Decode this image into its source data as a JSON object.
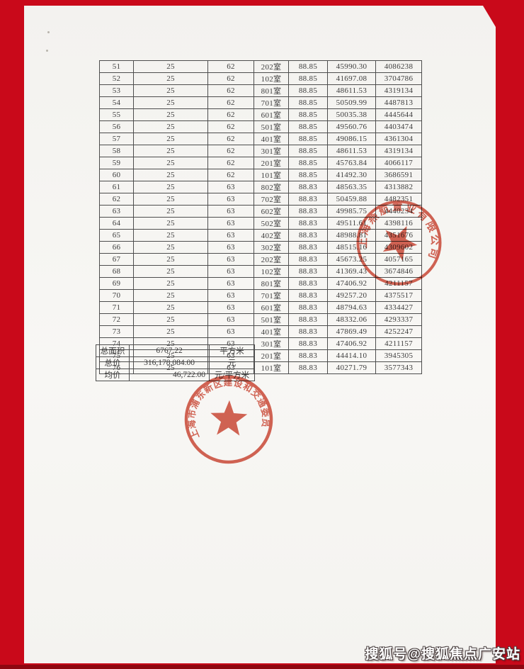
{
  "table": {
    "rows": [
      [
        "51",
        "25",
        "62",
        "202室",
        "88.85",
        "45990.30",
        "4086238"
      ],
      [
        "52",
        "25",
        "62",
        "102室",
        "88.85",
        "41697.08",
        "3704786"
      ],
      [
        "53",
        "25",
        "62",
        "801室",
        "88.85",
        "48611.53",
        "4319134"
      ],
      [
        "54",
        "25",
        "62",
        "701室",
        "88.85",
        "50509.99",
        "4487813"
      ],
      [
        "55",
        "25",
        "62",
        "601室",
        "88.85",
        "50035.38",
        "4445644"
      ],
      [
        "56",
        "25",
        "62",
        "501室",
        "88.85",
        "49560.76",
        "4403474"
      ],
      [
        "57",
        "25",
        "62",
        "401室",
        "88.85",
        "49086.15",
        "4361304"
      ],
      [
        "58",
        "25",
        "62",
        "301室",
        "88.85",
        "48611.53",
        "4319134"
      ],
      [
        "59",
        "25",
        "62",
        "201室",
        "88.85",
        "45763.84",
        "4066117"
      ],
      [
        "60",
        "25",
        "62",
        "101室",
        "88.85",
        "41492.30",
        "3686591"
      ],
      [
        "61",
        "25",
        "63",
        "802室",
        "88.83",
        "48563.35",
        "4313882"
      ],
      [
        "62",
        "25",
        "63",
        "702室",
        "88.83",
        "50459.88",
        "4482351"
      ],
      [
        "63",
        "25",
        "63",
        "602室",
        "88.83",
        "49985.75",
        "4440234"
      ],
      [
        "64",
        "25",
        "63",
        "502室",
        "88.83",
        "49511.61",
        "4398116"
      ],
      [
        "65",
        "25",
        "63",
        "402室",
        "88.83",
        "48988.81",
        "4351676"
      ],
      [
        "66",
        "25",
        "63",
        "302室",
        "88.83",
        "48515.16",
        "4309602"
      ],
      [
        "67",
        "25",
        "63",
        "202室",
        "88.83",
        "45673.25",
        "4057165"
      ],
      [
        "68",
        "25",
        "63",
        "102室",
        "88.83",
        "41369.43",
        "3674846"
      ],
      [
        "69",
        "25",
        "63",
        "801室",
        "88.83",
        "47406.92",
        "4211157"
      ],
      [
        "70",
        "25",
        "63",
        "701室",
        "88.83",
        "49257.20",
        "4375517"
      ],
      [
        "71",
        "25",
        "63",
        "601室",
        "88.83",
        "48794.63",
        "4334427"
      ],
      [
        "72",
        "25",
        "63",
        "501室",
        "88.83",
        "48332.06",
        "4293337"
      ],
      [
        "73",
        "25",
        "63",
        "401室",
        "88.83",
        "47869.49",
        "4252247"
      ],
      [
        "74",
        "25",
        "63",
        "301室",
        "88.83",
        "47406.92",
        "4211157"
      ],
      [
        "75",
        "25",
        "63",
        "201室",
        "88.83",
        "44414.10",
        "3945305"
      ],
      [
        "76",
        "25",
        "63",
        "101室",
        "88.83",
        "40271.79",
        "3577343"
      ]
    ]
  },
  "summary": {
    "rows": [
      {
        "label": "总面积",
        "value": "6767.22",
        "unit": "平方米"
      },
      {
        "label": "总价",
        "value": "316,178,084.00",
        "unit": "元"
      },
      {
        "label": "均价",
        "value": "46,722.00",
        "unit": "元/平方米"
      }
    ]
  },
  "stamps": [
    {
      "text": "上海燕航置业有限公司"
    },
    {
      "text": "上海市浦东新区建设和交通委员会"
    }
  ],
  "watermark": {
    "text": "搜狐号@搜狐焦点广安站"
  },
  "colors": {
    "frame_red": "#c9091a",
    "frame_dark_red": "#8e0710",
    "stamp_red": "#cf4a38",
    "table_line": "#4d4d4d",
    "text_color": "#3d3d3d"
  }
}
